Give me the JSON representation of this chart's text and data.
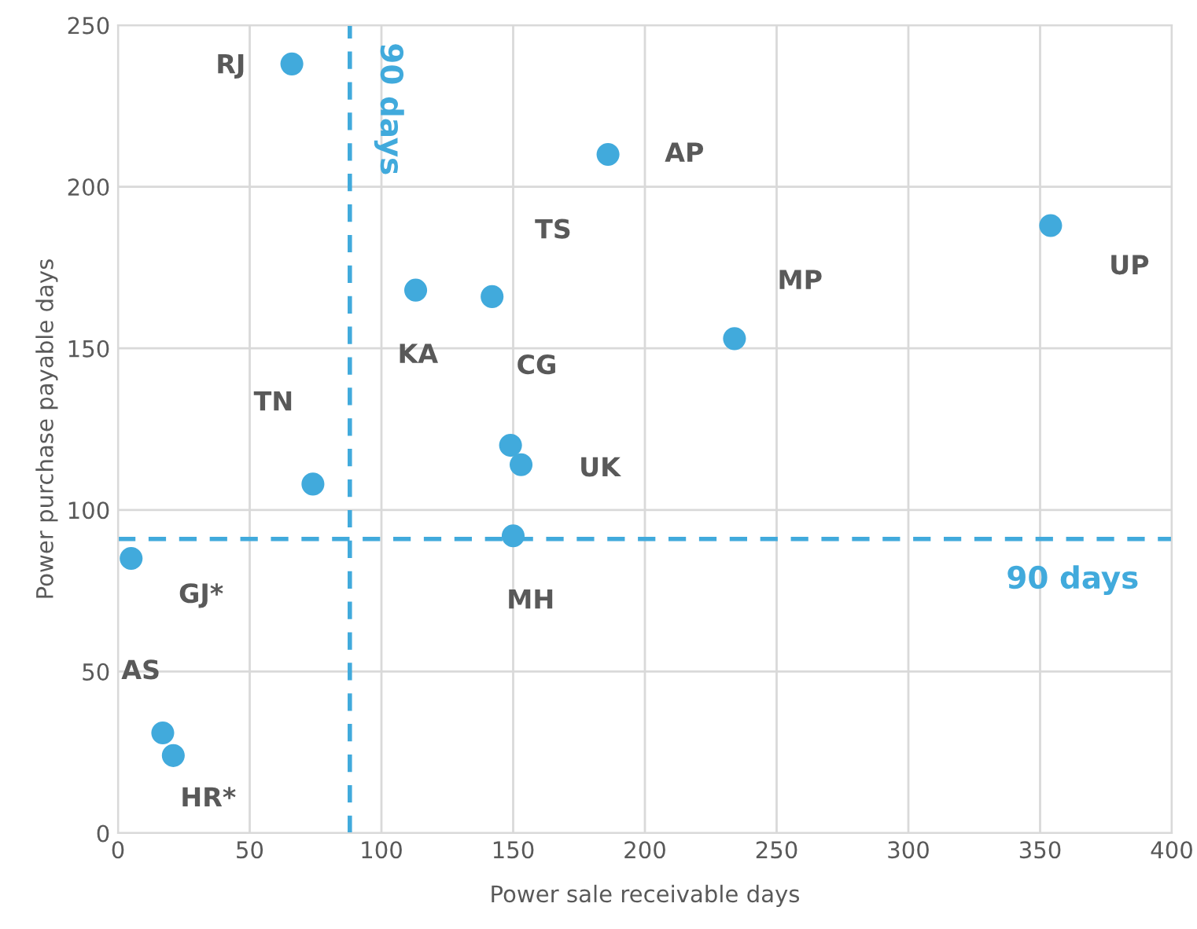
{
  "chart_data": {
    "type": "scatter",
    "xlabel": "Power sale receivable days",
    "ylabel": "Power purchase payable days",
    "xlim": [
      0,
      400
    ],
    "ylim": [
      0,
      250
    ],
    "xticks": [
      0,
      50,
      100,
      150,
      200,
      250,
      300,
      350,
      400
    ],
    "yticks": [
      0,
      50,
      100,
      150,
      200,
      250
    ],
    "grid": true,
    "marker": "circle",
    "series": [
      {
        "color": "#41aadc",
        "x": [
          66,
          186,
          354,
          142,
          113,
          234,
          149,
          153,
          74,
          150,
          5,
          17,
          21
        ],
        "values": [
          238,
          210,
          188,
          166,
          168,
          153,
          120,
          114,
          108,
          92,
          85,
          31,
          24
        ]
      }
    ],
    "annotations": [
      {
        "text": "RJ",
        "x": 66,
        "y": 238
      },
      {
        "text": "AP",
        "x": 186,
        "y": 210
      },
      {
        "text": "UP",
        "x": 354,
        "y": 188
      },
      {
        "text": "TS",
        "x": 142,
        "y": 166
      },
      {
        "text": "KA",
        "x": 113,
        "y": 168
      },
      {
        "text": "MP",
        "x": 234,
        "y": 153
      },
      {
        "text": "CG",
        "x": 149,
        "y": 120
      },
      {
        "text": "UK",
        "x": 153,
        "y": 114
      },
      {
        "text": "TN",
        "x": 74,
        "y": 108
      },
      {
        "text": "MH",
        "x": 150,
        "y": 92
      },
      {
        "text": "GJ*",
        "x": 5,
        "y": 85
      },
      {
        "text": "AS",
        "x": 17,
        "y": 31
      },
      {
        "text": "HR*",
        "x": 21,
        "y": 24
      }
    ],
    "ref_lines": [
      {
        "axis": "x",
        "value": 88,
        "label": "90 days",
        "color": "#41aadc",
        "line_style": "dashed"
      },
      {
        "axis": "y",
        "value": 91,
        "label": "90 days",
        "color": "#41aadc",
        "line_style": "dashed"
      }
    ]
  }
}
